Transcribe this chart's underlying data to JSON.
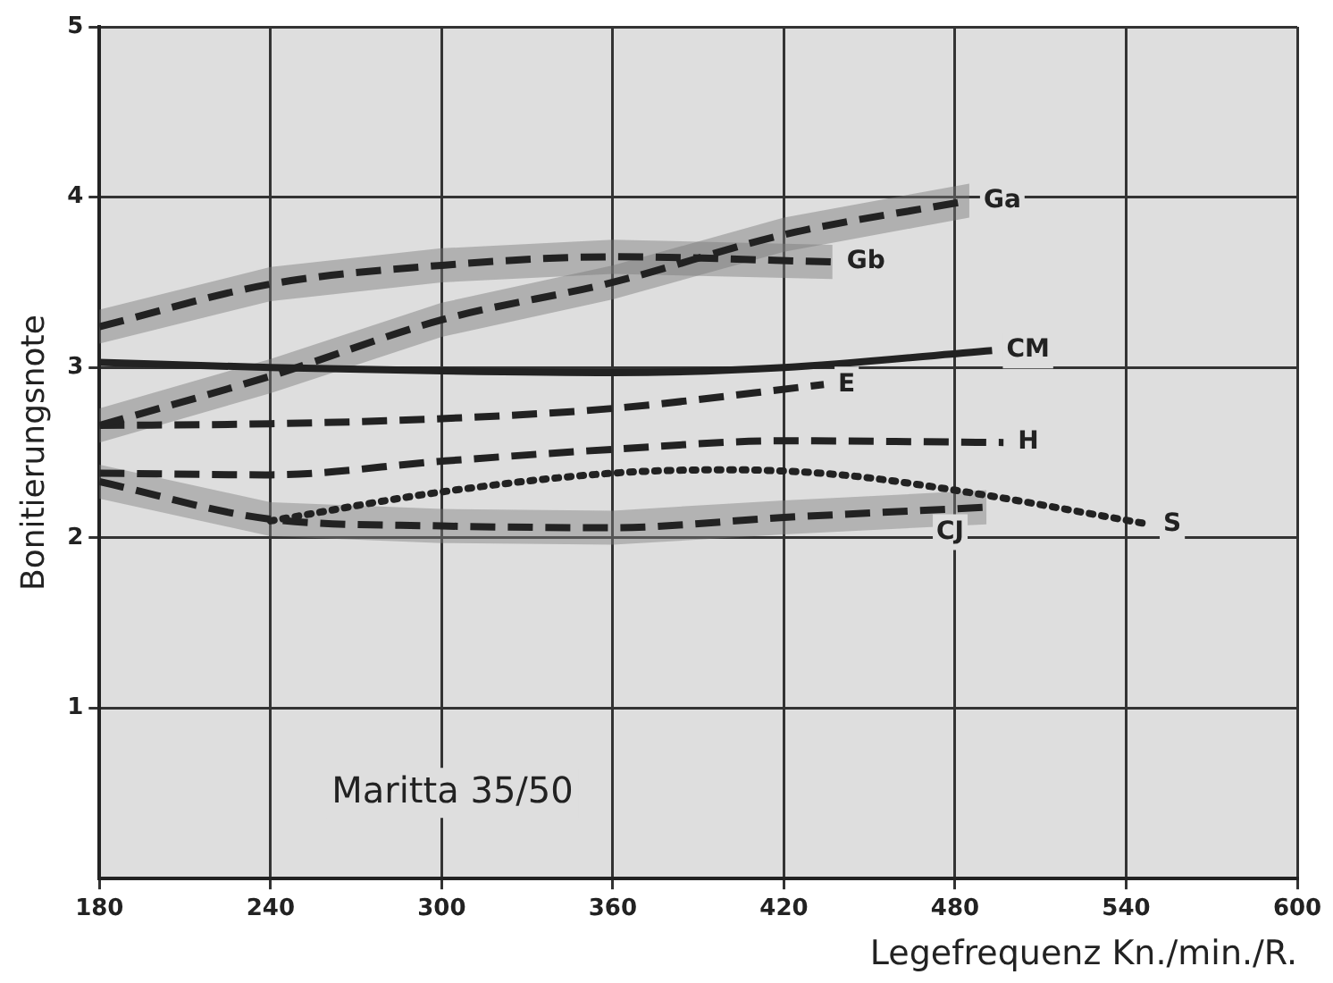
{
  "chart_data": {
    "type": "line",
    "xlabel": "Legefrequenz Kn./min./R.",
    "ylabel": "Bonitierungsnote",
    "annotations": [
      "Maritta 35/50"
    ],
    "xlim": [
      180,
      600
    ],
    "xticks": [
      180,
      240,
      300,
      360,
      420,
      480,
      540,
      600
    ],
    "ylim": [
      0,
      5
    ],
    "yticks": [
      1,
      2,
      3,
      4,
      5
    ],
    "grid": true,
    "legend": false,
    "marker": "none",
    "series": [
      {
        "name": "Ga",
        "color": "#222222",
        "line_style": "dashed",
        "x": [
          180,
          240,
          300,
          360,
          420,
          485
        ],
        "values": [
          2.66,
          2.95,
          3.28,
          3.5,
          3.78,
          3.98
        ],
        "lower": [
          2.56,
          2.85,
          3.18,
          3.4,
          3.68,
          3.88
        ],
        "upper": [
          2.76,
          3.05,
          3.38,
          3.6,
          3.88,
          4.08
        ]
      },
      {
        "name": "Gb",
        "color": "#222222",
        "line_style": "dashed",
        "x": [
          180,
          240,
          300,
          360,
          437
        ],
        "values": [
          3.24,
          3.49,
          3.6,
          3.65,
          3.62
        ],
        "lower": [
          3.14,
          3.39,
          3.5,
          3.55,
          3.52
        ],
        "upper": [
          3.34,
          3.59,
          3.7,
          3.75,
          3.72
        ]
      },
      {
        "name": "CM",
        "color": "#222222",
        "line_style": "solid",
        "x": [
          180,
          240,
          300,
          360,
          420,
          493
        ],
        "values": [
          3.03,
          3.0,
          2.98,
          2.97,
          3.0,
          3.1
        ]
      },
      {
        "name": "E",
        "color": "#222222",
        "line_style": "dashed",
        "x": [
          180,
          240,
          300,
          360,
          434
        ],
        "values": [
          2.66,
          2.67,
          2.7,
          2.76,
          2.9
        ]
      },
      {
        "name": "H",
        "color": "#222222",
        "line_style": "dashed",
        "x": [
          180,
          240,
          300,
          360,
          420,
          497
        ],
        "values": [
          2.38,
          2.37,
          2.45,
          2.52,
          2.57,
          2.56
        ]
      },
      {
        "name": "S",
        "color": "#222222",
        "line_style": "dotted",
        "x": [
          240,
          300,
          360,
          400,
          440,
          480,
          548
        ],
        "values": [
          2.1,
          2.27,
          2.38,
          2.4,
          2.37,
          2.28,
          2.08
        ]
      },
      {
        "name": "CJ",
        "color": "#222222",
        "line_style": "dashed",
        "x": [
          180,
          240,
          300,
          360,
          420,
          491
        ],
        "values": [
          2.33,
          2.11,
          2.07,
          2.06,
          2.12,
          2.18
        ],
        "lower": [
          2.23,
          2.01,
          1.97,
          1.96,
          2.02,
          2.08
        ],
        "upper": [
          2.43,
          2.21,
          2.17,
          2.16,
          2.22,
          2.28
        ]
      }
    ]
  }
}
